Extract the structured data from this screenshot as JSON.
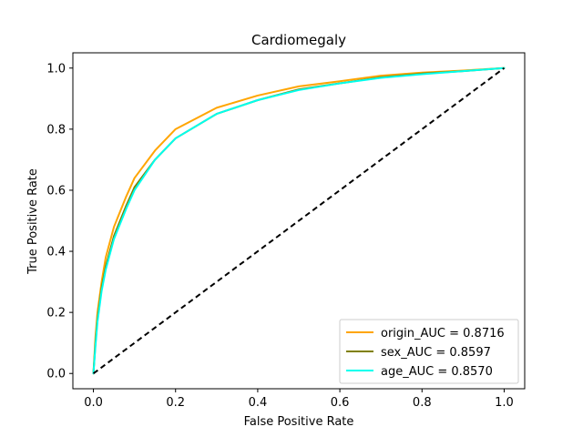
{
  "chart_data": {
    "type": "line",
    "title": "Cardiomegaly",
    "xlabel": "False Positive Rate",
    "ylabel": "True Positive Rate",
    "xlim": [
      -0.05,
      1.05
    ],
    "ylim": [
      -0.05,
      1.05
    ],
    "xticks": [
      0.0,
      0.2,
      0.4,
      0.6,
      0.8,
      1.0
    ],
    "yticks": [
      0.0,
      0.2,
      0.4,
      0.6,
      0.8,
      1.0
    ],
    "xtick_labels": [
      "0.0",
      "0.2",
      "0.4",
      "0.6",
      "0.8",
      "1.0"
    ],
    "ytick_labels": [
      "0.0",
      "0.2",
      "0.4",
      "0.6",
      "0.8",
      "1.0"
    ],
    "grid": false,
    "legend_position": "lower right",
    "series": [
      {
        "name": "origin_AUC = 0.8716",
        "color": "#ffa500",
        "points": [
          [
            0.0,
            0.0
          ],
          [
            0.005,
            0.12
          ],
          [
            0.01,
            0.2
          ],
          [
            0.02,
            0.3
          ],
          [
            0.03,
            0.38
          ],
          [
            0.05,
            0.48
          ],
          [
            0.08,
            0.58
          ],
          [
            0.1,
            0.64
          ],
          [
            0.15,
            0.73
          ],
          [
            0.2,
            0.8
          ],
          [
            0.3,
            0.87
          ],
          [
            0.4,
            0.91
          ],
          [
            0.5,
            0.94
          ],
          [
            0.6,
            0.957
          ],
          [
            0.7,
            0.975
          ],
          [
            0.8,
            0.985
          ],
          [
            0.9,
            0.992
          ],
          [
            1.0,
            1.0
          ]
        ]
      },
      {
        "name": "sex_AUC = 0.8597",
        "color": "#808000",
        "points": [
          [
            0.0,
            0.0
          ],
          [
            0.005,
            0.1
          ],
          [
            0.01,
            0.18
          ],
          [
            0.02,
            0.28
          ],
          [
            0.03,
            0.35
          ],
          [
            0.05,
            0.45
          ],
          [
            0.08,
            0.55
          ],
          [
            0.1,
            0.61
          ],
          [
            0.15,
            0.7
          ],
          [
            0.2,
            0.77
          ],
          [
            0.3,
            0.85
          ],
          [
            0.4,
            0.895
          ],
          [
            0.5,
            0.93
          ],
          [
            0.6,
            0.95
          ],
          [
            0.7,
            0.97
          ],
          [
            0.8,
            0.982
          ],
          [
            0.9,
            0.99
          ],
          [
            1.0,
            1.0
          ]
        ]
      },
      {
        "name": "age_AUC = 0.8570",
        "color": "#00ffee",
        "points": [
          [
            0.0,
            0.0
          ],
          [
            0.005,
            0.09
          ],
          [
            0.01,
            0.17
          ],
          [
            0.02,
            0.27
          ],
          [
            0.03,
            0.34
          ],
          [
            0.05,
            0.44
          ],
          [
            0.08,
            0.54
          ],
          [
            0.1,
            0.6
          ],
          [
            0.15,
            0.7
          ],
          [
            0.2,
            0.77
          ],
          [
            0.3,
            0.85
          ],
          [
            0.4,
            0.895
          ],
          [
            0.5,
            0.928
          ],
          [
            0.6,
            0.95
          ],
          [
            0.7,
            0.968
          ],
          [
            0.8,
            0.98
          ],
          [
            0.9,
            0.99
          ],
          [
            1.0,
            1.0
          ]
        ]
      }
    ],
    "reference_line": {
      "color": "#000000",
      "style": "dashed",
      "points": [
        [
          0.0,
          0.0
        ],
        [
          1.0,
          1.0
        ]
      ]
    }
  }
}
